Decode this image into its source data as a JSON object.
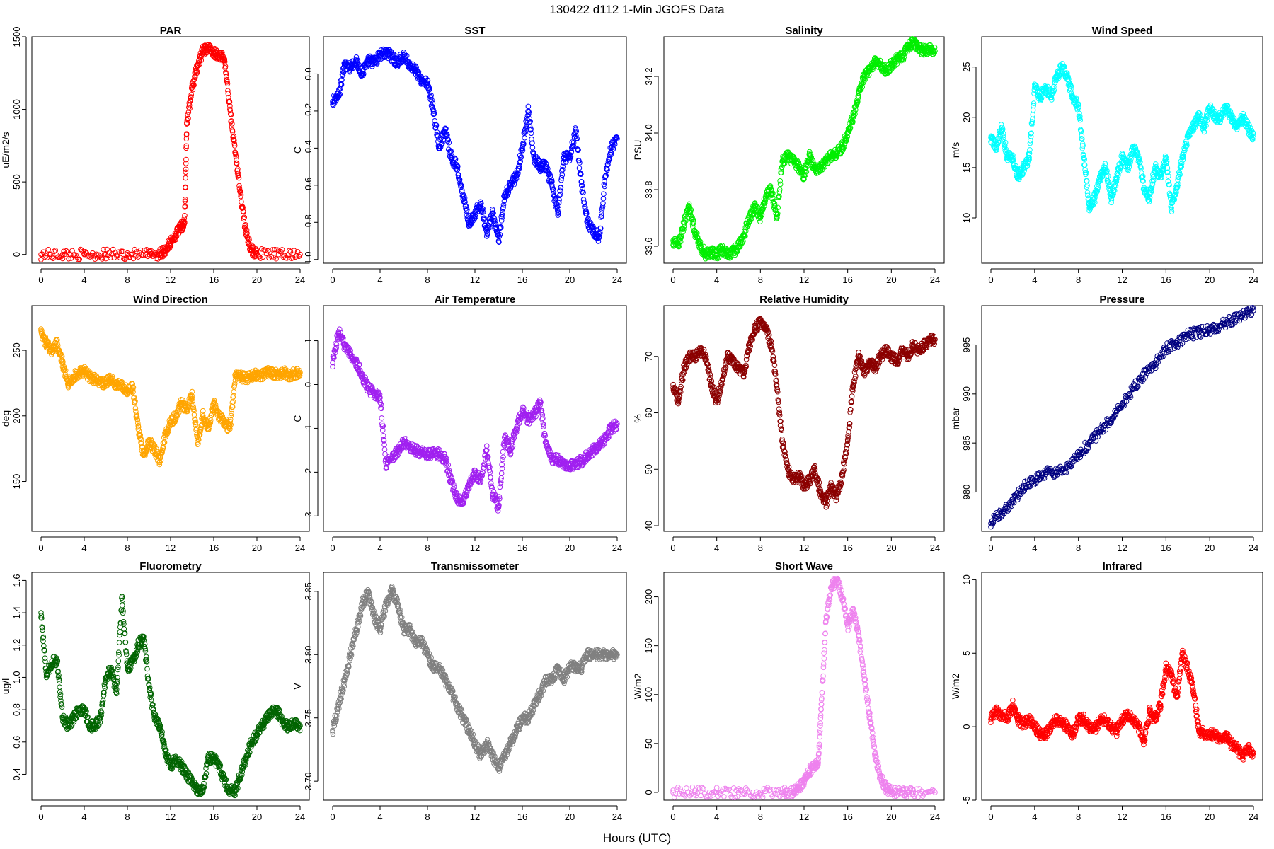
{
  "figure": {
    "title": "130422   d112   1-Min  JGOFS Data",
    "xlabel": "Hours (UTC)"
  },
  "chart_data": [
    {
      "type": "scatter",
      "title": "PAR",
      "ylabel": "uE/m2/s",
      "color": "#ff0000",
      "ylim": [
        -60,
        1500
      ],
      "yticks": [
        0,
        500,
        1000,
        1500
      ],
      "xticks": [
        0,
        4,
        8,
        12,
        16,
        20,
        24
      ],
      "xlim": [
        0,
        24
      ],
      "x": [
        0,
        2,
        4,
        6,
        8,
        10,
        11,
        11.5,
        12,
        12.5,
        13,
        13.3,
        13.5,
        14,
        14.5,
        15,
        15.5,
        16,
        16.5,
        17,
        17.5,
        18,
        18.5,
        19,
        19.5,
        20,
        22,
        24
      ],
      "y": [
        0,
        0,
        0,
        0,
        0,
        0,
        5,
        30,
        80,
        140,
        190,
        220,
        900,
        1150,
        1300,
        1400,
        1430,
        1390,
        1380,
        1340,
        1000,
        700,
        400,
        150,
        30,
        5,
        0,
        0
      ]
    },
    {
      "type": "scatter",
      "title": "SST",
      "ylabel": "C",
      "color": "#0000ff",
      "ylim": [
        -1.02,
        0.2
      ],
      "yticks": [
        -1.0,
        -0.8,
        -0.6,
        -0.4,
        -0.2,
        0.0
      ],
      "xticks": [
        0,
        4,
        8,
        12,
        16,
        20,
        24
      ],
      "xlim": [
        0,
        24
      ],
      "x": [
        0,
        0.5,
        1,
        1.5,
        2,
        2.5,
        3,
        3.5,
        4,
        4.5,
        5,
        5.5,
        6,
        6.5,
        7,
        7.5,
        8,
        8.5,
        9,
        9.5,
        10,
        10.5,
        11,
        11.5,
        12,
        12.5,
        13,
        13.5,
        14,
        14.5,
        15,
        15.5,
        16,
        16.5,
        17,
        17.5,
        18,
        18.5,
        19,
        19.5,
        20,
        20.5,
        21,
        21.5,
        22,
        22.5,
        23,
        23.5,
        24
      ],
      "y": [
        -0.15,
        -0.12,
        0.05,
        0.03,
        0.07,
        0.0,
        0.08,
        0.06,
        0.1,
        0.12,
        0.09,
        0.06,
        0.1,
        0.05,
        0.02,
        -0.03,
        -0.05,
        -0.2,
        -0.4,
        -0.3,
        -0.45,
        -0.5,
        -0.65,
        -0.8,
        -0.75,
        -0.7,
        -0.85,
        -0.75,
        -0.9,
        -0.65,
        -0.6,
        -0.55,
        -0.4,
        -0.2,
        -0.45,
        -0.5,
        -0.5,
        -0.6,
        -0.75,
        -0.45,
        -0.45,
        -0.3,
        -0.6,
        -0.8,
        -0.85,
        -0.88,
        -0.55,
        -0.4,
        -0.35
      ]
    },
    {
      "type": "scatter",
      "title": "Salinity",
      "ylabel": "PSU",
      "color": "#00ee00",
      "ylim": [
        33.54,
        34.34
      ],
      "yticks": [
        33.6,
        33.8,
        34.0,
        34.2
      ],
      "xticks": [
        0,
        4,
        8,
        12,
        16,
        20,
        24
      ],
      "xlim": [
        0,
        24
      ],
      "x": [
        0,
        0.5,
        1,
        1.5,
        2,
        2.5,
        3,
        3.5,
        4,
        4.5,
        5,
        5.5,
        6,
        6.5,
        7,
        7.5,
        8,
        8.5,
        9,
        9.5,
        10,
        10.5,
        11,
        11.5,
        12,
        12.5,
        13,
        13.5,
        14,
        14.5,
        15,
        15.5,
        16,
        16.5,
        17,
        17.5,
        18,
        18.5,
        19,
        19.5,
        20,
        20.5,
        21,
        21.5,
        22,
        22.5,
        23,
        23.5,
        24
      ],
      "y": [
        33.62,
        33.6,
        33.68,
        33.74,
        33.65,
        33.6,
        33.57,
        33.58,
        33.57,
        33.59,
        33.57,
        33.58,
        33.6,
        33.64,
        33.7,
        33.74,
        33.7,
        33.78,
        33.8,
        33.7,
        33.9,
        33.92,
        33.9,
        33.88,
        33.85,
        33.92,
        33.87,
        33.88,
        33.9,
        33.92,
        33.93,
        33.95,
        34.0,
        34.06,
        34.13,
        34.2,
        34.22,
        34.25,
        34.24,
        34.22,
        34.24,
        34.26,
        34.27,
        34.3,
        34.32,
        34.3,
        34.29,
        34.3,
        34.29
      ]
    },
    {
      "type": "scatter",
      "title": "Wind Speed",
      "ylabel": "m/s",
      "color": "#00ffff",
      "ylim": [
        5.5,
        28
      ],
      "yticks": [
        10,
        15,
        20,
        25
      ],
      "xticks": [
        0,
        4,
        8,
        12,
        16,
        20,
        24
      ],
      "xlim": [
        0,
        24
      ],
      "x": [
        0,
        0.5,
        1,
        1.5,
        2,
        2.5,
        3,
        3.5,
        4,
        4.5,
        5,
        5.5,
        6,
        6.5,
        7,
        7.5,
        8,
        8.5,
        9,
        9.5,
        10,
        10.5,
        11,
        11.5,
        12,
        12.5,
        13,
        13.5,
        14,
        14.5,
        15,
        15.5,
        16,
        16.5,
        17,
        17.5,
        18,
        18.5,
        19,
        19.5,
        20,
        20.5,
        21,
        21.5,
        22,
        22.5,
        23,
        23.5,
        24
      ],
      "y": [
        18,
        17,
        19,
        16,
        16,
        14,
        15,
        16,
        23,
        22,
        23,
        22,
        24,
        25,
        24,
        22,
        21,
        16,
        11,
        12,
        14,
        15,
        12,
        14,
        16,
        15,
        17,
        16,
        13,
        12,
        15,
        14,
        16,
        11,
        13,
        16,
        18,
        19,
        20,
        19,
        21,
        20,
        20,
        21,
        20,
        19,
        20,
        19,
        18
      ]
    },
    {
      "type": "scatter",
      "title": "Wind Direction",
      "ylabel": "deg",
      "color": "#ffa500",
      "ylim": [
        112,
        284
      ],
      "yticks": [
        150,
        200,
        250
      ],
      "xticks": [
        0,
        4,
        8,
        12,
        16,
        20,
        24
      ],
      "xlim": [
        0,
        24
      ],
      "x": [
        0,
        0.5,
        1,
        1.5,
        2,
        2.5,
        3,
        3.5,
        4,
        4.5,
        5,
        5.5,
        6,
        6.5,
        7,
        7.5,
        8,
        8.5,
        9,
        9.5,
        10,
        10.5,
        11,
        11.5,
        12,
        12.5,
        13,
        13.5,
        14,
        14.5,
        15,
        15.5,
        16,
        16.5,
        17,
        17.5,
        18,
        18.5,
        19,
        19.5,
        20,
        20.5,
        21,
        21.5,
        22,
        22.5,
        23,
        23.5,
        24
      ],
      "y": [
        265,
        255,
        250,
        255,
        240,
        225,
        230,
        232,
        235,
        230,
        228,
        226,
        225,
        228,
        224,
        222,
        220,
        222,
        190,
        170,
        180,
        175,
        165,
        185,
        195,
        200,
        210,
        205,
        215,
        180,
        200,
        190,
        210,
        200,
        195,
        190,
        230,
        230,
        228,
        230,
        232,
        231,
        233,
        232,
        232,
        233,
        231,
        232,
        233
      ]
    },
    {
      "type": "scatter",
      "title": "Air Temperature",
      "ylabel": "C",
      "color": "#a020f0",
      "ylim": [
        -3.35,
        1.8
      ],
      "yticks": [
        -3,
        -2,
        -1,
        0,
        1
      ],
      "xticks": [
        0,
        4,
        8,
        12,
        16,
        20,
        24
      ],
      "xlim": [
        0,
        24
      ],
      "x": [
        0,
        0.5,
        1,
        1.5,
        2,
        2.5,
        3,
        3.5,
        4,
        4.5,
        5,
        5.5,
        6,
        6.5,
        7,
        7.5,
        8,
        8.5,
        9,
        9.5,
        10,
        10.5,
        11,
        11.5,
        12,
        12.5,
        13,
        13.5,
        14,
        14.5,
        15,
        15.5,
        16,
        16.5,
        17,
        17.5,
        18,
        18.5,
        19,
        19.5,
        20,
        20.5,
        21,
        21.5,
        22,
        22.5,
        23,
        23.5,
        24
      ],
      "y": [
        0.5,
        1.2,
        0.9,
        0.7,
        0.5,
        0.2,
        -0.1,
        -0.2,
        -0.3,
        -1.8,
        -1.7,
        -1.5,
        -1.3,
        -1.4,
        -1.5,
        -1.55,
        -1.6,
        -1.55,
        -1.6,
        -1.7,
        -2.2,
        -2.6,
        -2.7,
        -2.3,
        -2.0,
        -2.2,
        -1.5,
        -2.5,
        -2.8,
        -1.2,
        -1.5,
        -1.0,
        -0.6,
        -0.8,
        -0.7,
        -0.4,
        -1.4,
        -1.7,
        -1.7,
        -1.8,
        -1.85,
        -1.8,
        -1.75,
        -1.6,
        -1.5,
        -1.4,
        -1.2,
        -1.0,
        -0.9
      ]
    },
    {
      "type": "scatter",
      "title": "Relative Humidity",
      "ylabel": "%",
      "color": "#8b0000",
      "ylim": [
        39,
        79
      ],
      "yticks": [
        40,
        50,
        60,
        70
      ],
      "xticks": [
        0,
        4,
        8,
        12,
        16,
        20,
        24
      ],
      "xlim": [
        0,
        24
      ],
      "x": [
        0,
        0.5,
        1,
        1.5,
        2,
        2.5,
        3,
        3.5,
        4,
        4.5,
        5,
        5.5,
        6,
        6.5,
        7,
        7.5,
        8,
        8.5,
        9,
        9.5,
        10,
        10.5,
        11,
        11.5,
        12,
        12.5,
        13,
        13.5,
        14,
        14.5,
        15,
        15.5,
        16,
        16.5,
        17,
        17.5,
        18,
        18.5,
        19,
        19.5,
        20,
        20.5,
        21,
        21.5,
        22,
        22.5,
        23,
        23.5,
        24
      ],
      "y": [
        65,
        62,
        68,
        70,
        70,
        71,
        70,
        65,
        62,
        66,
        70,
        69,
        68,
        67,
        72,
        75,
        76,
        75,
        72,
        65,
        55,
        50,
        48,
        49,
        47,
        48,
        50,
        46,
        44,
        47,
        45,
        49,
        55,
        65,
        70,
        67,
        69,
        68,
        70,
        71,
        70,
        69,
        71,
        70,
        72,
        71,
        72,
        73,
        73
      ]
    },
    {
      "type": "scatter",
      "title": "Pressure",
      "ylabel": "mbar",
      "color": "#000080",
      "ylim": [
        976,
        999
      ],
      "yticks": [
        980,
        985,
        990,
        995
      ],
      "xticks": [
        0,
        4,
        8,
        12,
        16,
        20,
        24
      ],
      "xlim": [
        0,
        24
      ],
      "x": [
        0,
        1,
        2,
        3,
        4,
        5,
        6,
        7,
        8,
        9,
        10,
        11,
        12,
        13,
        14,
        15,
        16,
        17,
        18,
        19,
        20,
        21,
        22,
        23,
        24
      ],
      "y": [
        976.8,
        978,
        979,
        980.5,
        981.2,
        982,
        982,
        982.5,
        983.8,
        985,
        986.2,
        987.5,
        989,
        990.5,
        992,
        993,
        994.6,
        995.2,
        996,
        996.3,
        996.5,
        997,
        997.5,
        998,
        998.5
      ]
    },
    {
      "type": "scatter",
      "title": "Fluorometry",
      "ylabel": "ug/l",
      "color": "#006400",
      "ylim": [
        0.24,
        1.65
      ],
      "yticks": [
        0.4,
        0.6,
        0.8,
        1.0,
        1.2,
        1.4,
        1.6
      ],
      "xticks": [
        0,
        4,
        8,
        12,
        16,
        20,
        24
      ],
      "xlim": [
        0,
        24
      ],
      "x": [
        0,
        0.5,
        1,
        1.5,
        2,
        2.5,
        3,
        3.5,
        4,
        4.5,
        5,
        5.5,
        6,
        6.5,
        7,
        7.5,
        8,
        8.5,
        9,
        9.5,
        10,
        10.5,
        11,
        11.5,
        12,
        12.5,
        13,
        13.5,
        14,
        14.5,
        15,
        15.5,
        16,
        16.5,
        17,
        17.5,
        18,
        18.5,
        19,
        19.5,
        20,
        20.5,
        21,
        21.5,
        22,
        22.5,
        23,
        23.5,
        24
      ],
      "y": [
        1.4,
        1.0,
        1.1,
        1.1,
        0.75,
        0.7,
        0.75,
        0.8,
        0.8,
        0.7,
        0.7,
        0.75,
        1.0,
        1.05,
        0.9,
        1.5,
        1.05,
        1.1,
        1.2,
        1.25,
        0.95,
        0.75,
        0.7,
        0.55,
        0.45,
        0.5,
        0.45,
        0.4,
        0.35,
        0.3,
        0.3,
        0.5,
        0.5,
        0.45,
        0.35,
        0.3,
        0.3,
        0.4,
        0.5,
        0.6,
        0.65,
        0.7,
        0.75,
        0.8,
        0.78,
        0.7,
        0.7,
        0.72,
        0.7
      ]
    },
    {
      "type": "scatter",
      "title": "Transmissometer",
      "ylabel": "V",
      "color": "#808080",
      "ylim": [
        3.685,
        3.865
      ],
      "yticks": [
        3.7,
        3.75,
        3.8,
        3.85
      ],
      "xticks": [
        0,
        4,
        8,
        12,
        16,
        20,
        24
      ],
      "xlim": [
        0,
        24
      ],
      "x": [
        0,
        0.5,
        1,
        1.5,
        2,
        2.5,
        3,
        3.5,
        4,
        4.5,
        5,
        5.5,
        6,
        6.5,
        7,
        7.5,
        8,
        8.5,
        9,
        9.5,
        10,
        10.5,
        11,
        11.5,
        12,
        12.5,
        13,
        13.5,
        14,
        14.5,
        15,
        15.5,
        16,
        16.5,
        17,
        17.5,
        18,
        18.5,
        19,
        19.5,
        20,
        20.5,
        21,
        21.5,
        22,
        22.5,
        23,
        23.5,
        24
      ],
      "y": [
        3.74,
        3.76,
        3.78,
        3.8,
        3.82,
        3.84,
        3.85,
        3.83,
        3.82,
        3.84,
        3.85,
        3.84,
        3.82,
        3.82,
        3.81,
        3.81,
        3.8,
        3.79,
        3.79,
        3.78,
        3.77,
        3.76,
        3.75,
        3.74,
        3.73,
        3.72,
        3.73,
        3.72,
        3.71,
        3.72,
        3.73,
        3.74,
        3.75,
        3.75,
        3.76,
        3.77,
        3.78,
        3.78,
        3.79,
        3.78,
        3.79,
        3.79,
        3.79,
        3.8,
        3.8,
        3.8,
        3.8,
        3.8,
        3.8
      ]
    },
    {
      "type": "scatter",
      "title": "Short Wave",
      "ylabel": "W/m2",
      "color": "#ee82ee",
      "ylim": [
        -8,
        225
      ],
      "yticks": [
        0,
        50,
        100,
        150,
        200
      ],
      "xticks": [
        0,
        4,
        8,
        12,
        16,
        20,
        24
      ],
      "xlim": [
        0,
        24
      ],
      "x": [
        0,
        2,
        4,
        6,
        8,
        10,
        11,
        11.5,
        12,
        12.5,
        13,
        13.3,
        13.6,
        14,
        14.5,
        15,
        15.5,
        16,
        16.5,
        17,
        17.5,
        18,
        18.5,
        19,
        19.5,
        20,
        21,
        22,
        24
      ],
      "y": [
        0,
        0,
        0,
        0,
        0,
        0,
        0,
        5,
        12,
        22,
        28,
        30,
        90,
        175,
        210,
        218,
        200,
        170,
        185,
        160,
        120,
        80,
        40,
        15,
        5,
        1,
        0,
        0,
        0
      ]
    },
    {
      "type": "scatter",
      "title": "Infrared",
      "ylabel": "W/m2",
      "color": "#ff0000",
      "ylim": [
        -5,
        10.5
      ],
      "yticks": [
        -5,
        0,
        5,
        10
      ],
      "xticks": [
        0,
        4,
        8,
        12,
        16,
        20,
        24
      ],
      "xlim": [
        0,
        24
      ],
      "x": [
        0,
        0.5,
        1,
        1.5,
        2,
        2.5,
        3,
        3.5,
        4,
        4.5,
        5,
        5.5,
        6,
        6.5,
        7,
        7.5,
        8,
        8.5,
        9,
        9.5,
        10,
        10.5,
        11,
        11.5,
        12,
        12.5,
        13,
        13.5,
        14,
        14.5,
        15,
        15.5,
        16,
        16.5,
        17,
        17.5,
        18,
        18.5,
        19,
        19.5,
        20,
        20.5,
        21,
        21.5,
        22,
        22.5,
        23,
        23.5,
        24
      ],
      "y": [
        0.5,
        1.0,
        0.8,
        0.6,
        1.5,
        0.5,
        0.2,
        0.5,
        0.0,
        -0.5,
        -0.5,
        0.0,
        0.5,
        0.3,
        0.0,
        -0.5,
        0.5,
        0.5,
        0.0,
        -0.2,
        0.5,
        0.5,
        0.0,
        -0.3,
        0.5,
        0.8,
        0.5,
        0.0,
        -1.0,
        1.0,
        0.5,
        1.5,
        4.0,
        3.5,
        2.0,
        5.0,
        4.0,
        2.5,
        -0.2,
        -0.5,
        -0.5,
        -0.6,
        -0.8,
        -0.6,
        -1.2,
        -1.5,
        -2.0,
        -1.5,
        -1.8
      ]
    }
  ]
}
